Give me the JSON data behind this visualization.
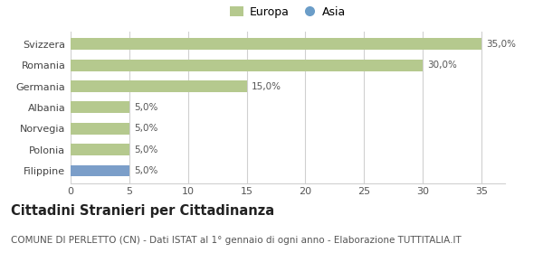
{
  "categories": [
    "Svizzera",
    "Romania",
    "Germania",
    "Albania",
    "Norvegia",
    "Polonia",
    "Filippine"
  ],
  "values": [
    35.0,
    30.0,
    15.0,
    5.0,
    5.0,
    5.0,
    5.0
  ],
  "bar_colors": [
    "#b5c98e",
    "#b5c98e",
    "#b5c98e",
    "#b5c98e",
    "#b5c98e",
    "#b5c98e",
    "#7b9ec9"
  ],
  "labels": [
    "35,0%",
    "30,0%",
    "15,0%",
    "5,0%",
    "5,0%",
    "5,0%",
    "5,0%"
  ],
  "legend_europa_color": "#b5c98e",
  "legend_asia_color": "#6b9dc8",
  "xlim": [
    0,
    37
  ],
  "xticks": [
    0,
    5,
    10,
    15,
    20,
    25,
    30,
    35
  ],
  "title": "Cittadini Stranieri per Cittadinanza",
  "subtitle": "COMUNE DI PERLETTO (CN) - Dati ISTAT al 1° gennaio di ogni anno - Elaborazione TUTTITALIA.IT",
  "background_color": "#ffffff",
  "grid_color": "#d0d0d0",
  "title_fontsize": 10.5,
  "subtitle_fontsize": 7.5,
  "label_fontsize": 7.5,
  "tick_fontsize": 8,
  "ytick_fontsize": 8
}
